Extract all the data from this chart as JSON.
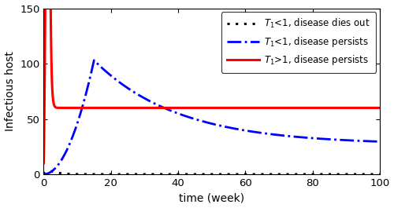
{
  "title": "",
  "xlabel": "time (week)",
  "ylabel": "Infectious host",
  "xlim": [
    0,
    100
  ],
  "ylim": [
    0,
    150
  ],
  "yticks": [
    0,
    50,
    100,
    150
  ],
  "xticks": [
    0,
    20,
    40,
    60,
    80,
    100
  ],
  "legend_entries": [
    {
      "label": "$T_1$<1, disease dies out",
      "color": "black",
      "linestyle": "dotted",
      "linewidth": 2.2
    },
    {
      "label": "$T_1$<1, disease persists",
      "color": "blue",
      "linestyle": "dashdot",
      "linewidth": 2.0
    },
    {
      "label": "$T_1$>1, disease persists",
      "color": "red",
      "linestyle": "solid",
      "linewidth": 2.2
    }
  ],
  "figsize": [
    5.0,
    2.65
  ],
  "dpi": 100,
  "background_color": "#ffffff"
}
